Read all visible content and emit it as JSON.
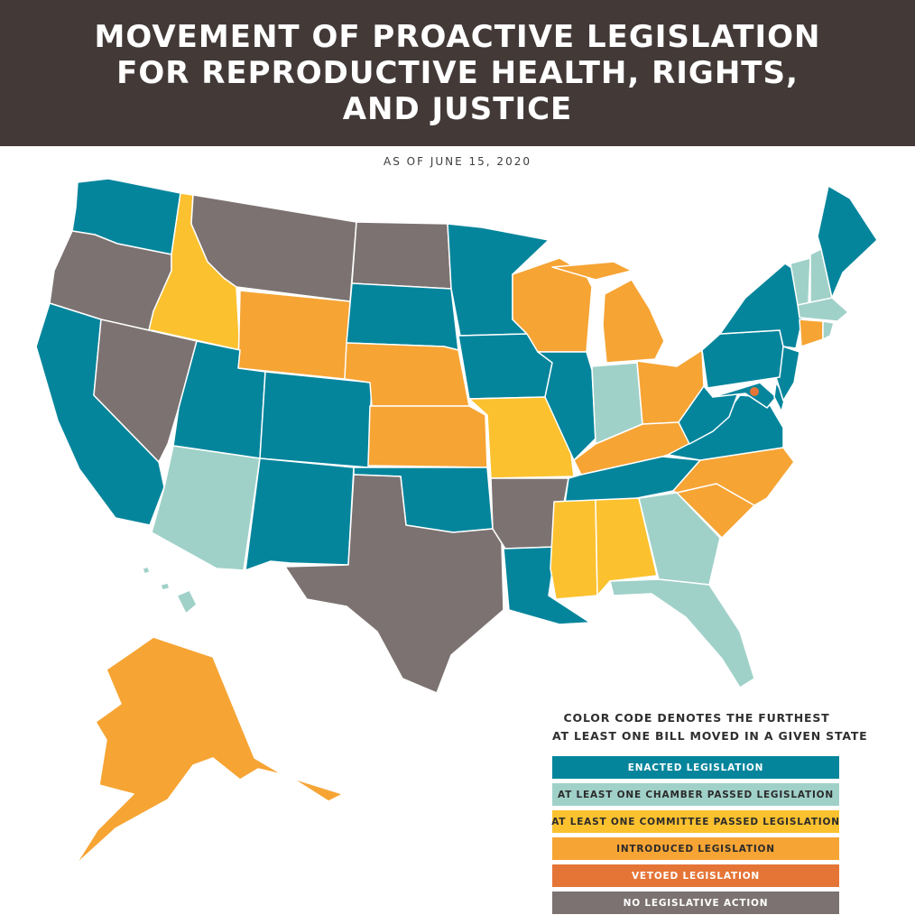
{
  "header": {
    "title": "MOVEMENT OF PROACTIVE LEGISLATION\nFOR REPRODUCTIVE HEALTH, RIGHTS,\nAND JUSTICE",
    "subtitle": "AS OF JUNE 15, 2020"
  },
  "colors": {
    "enacted": "#05859c",
    "chamber": "#a0d1c9",
    "committee": "#fbc12f",
    "introduced": "#f6a434",
    "vetoed": "#e57537",
    "none": "#7b7271"
  },
  "legend": {
    "title_line1": "COLOR CODE DENOTES THE FURTHEST",
    "title_line2": "AT LEAST ONE BILL MOVED IN A GIVEN STATE",
    "items": [
      {
        "label": "ENACTED LEGISLATION",
        "color": "#05859c",
        "text_color": "#ffffff"
      },
      {
        "label": "AT LEAST ONE CHAMBER PASSED LEGISLATION",
        "color": "#a0d1c9",
        "text_color": "#2b2b2b"
      },
      {
        "label": "AT LEAST ONE COMMITTEE PASSED LEGISLATION",
        "color": "#fbc12f",
        "text_color": "#2b2b2b"
      },
      {
        "label": "INTRODUCED LEGISLATION",
        "color": "#f6a434",
        "text_color": "#2b2b2b"
      },
      {
        "label": "VETOED LEGISLATION",
        "color": "#e57537",
        "text_color": "#ffffff"
      },
      {
        "label": "NO LEGISLATIVE ACTION",
        "color": "#7b7271",
        "text_color": "#ffffff"
      }
    ]
  },
  "states": {
    "washington": "enacted",
    "oregon": "none",
    "california": "enacted",
    "idaho": "committee",
    "nevada": "none",
    "montana": "none",
    "wyoming": "introduced",
    "utah": "enacted",
    "arizona": "chamber",
    "colorado": "enacted",
    "new_mexico": "enacted",
    "north_dakota": "none",
    "south_dakota": "enacted",
    "nebraska": "introduced",
    "kansas": "introduced",
    "oklahoma": "enacted",
    "texas": "none",
    "minnesota": "enacted",
    "iowa": "enacted",
    "missouri": "committee",
    "arkansas": "none",
    "louisiana": "enacted",
    "wisconsin": "introduced",
    "illinois": "enacted",
    "michigan": "introduced",
    "indiana": "chamber",
    "ohio": "introduced",
    "kentucky": "introduced",
    "tennessee": "enacted",
    "mississippi": "committee",
    "alabama": "committee",
    "georgia": "chamber",
    "florida": "chamber",
    "south_carolina": "introduced",
    "north_carolina": "introduced",
    "virginia": "enacted",
    "west_virginia": "enacted",
    "pennsylvania": "enacted",
    "new_york": "enacted",
    "maine": "enacted",
    "vermont": "chamber",
    "new_hampshire": "chamber",
    "massachusetts": "chamber",
    "connecticut": "introduced",
    "rhode_island": "chamber",
    "new_jersey": "enacted",
    "delaware": "enacted",
    "maryland": "enacted",
    "dc": "vetoed",
    "alaska": "introduced",
    "hawaii": "chamber"
  }
}
